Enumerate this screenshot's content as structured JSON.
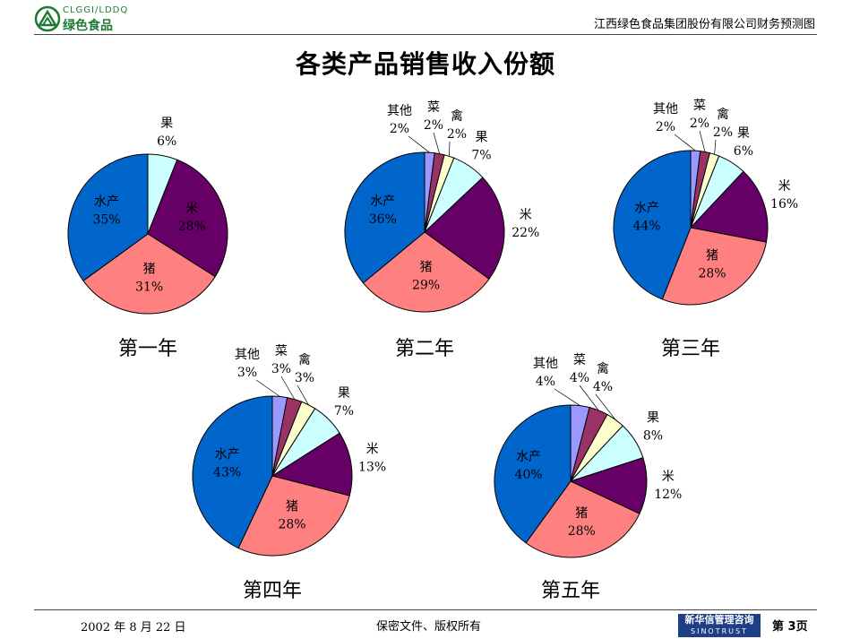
{
  "header": {
    "logo_top": "CLGGI/LDDQ",
    "logo_bottom": "绿色食品",
    "company": "江西绿色食品集团股份有限公司财务预测图"
  },
  "title": "各类产品销售收入份额",
  "colors": {
    "其他": "#9999ff",
    "菜": "#993366",
    "禽": "#ffffcc",
    "果": "#ccffff",
    "米": "#660066",
    "猪": "#ff8080",
    "水产": "#0066cc"
  },
  "chart_data": [
    {
      "type": "pie",
      "caption": "第一年",
      "slices": [
        {
          "name": "果",
          "value": 6,
          "label": "6%"
        },
        {
          "name": "米",
          "value": 28,
          "label": "28%"
        },
        {
          "name": "猪",
          "value": 31,
          "label": "31%"
        },
        {
          "name": "水产",
          "value": 35,
          "label": "35%"
        }
      ]
    },
    {
      "type": "pie",
      "caption": "第二年",
      "slices": [
        {
          "name": "其他",
          "value": 2,
          "label": "2%"
        },
        {
          "name": "菜",
          "value": 2,
          "label": "2%"
        },
        {
          "name": "禽",
          "value": 2,
          "label": "2%"
        },
        {
          "name": "果",
          "value": 7,
          "label": "7%"
        },
        {
          "name": "米",
          "value": 22,
          "label": "22%"
        },
        {
          "name": "猪",
          "value": 29,
          "label": "29%"
        },
        {
          "name": "水产",
          "value": 36,
          "label": "36%"
        }
      ]
    },
    {
      "type": "pie",
      "caption": "第三年",
      "slices": [
        {
          "name": "其他",
          "value": 2,
          "label": "2%"
        },
        {
          "name": "菜",
          "value": 2,
          "label": "2%"
        },
        {
          "name": "禽",
          "value": 2,
          "label": "2%"
        },
        {
          "name": "果",
          "value": 6,
          "label": "6%"
        },
        {
          "name": "米",
          "value": 16,
          "label": "16%"
        },
        {
          "name": "猪",
          "value": 28,
          "label": "28%"
        },
        {
          "name": "水产",
          "value": 44,
          "label": "44%"
        }
      ]
    },
    {
      "type": "pie",
      "caption": "第四年",
      "slices": [
        {
          "name": "其他",
          "value": 3,
          "label": "3%"
        },
        {
          "name": "菜",
          "value": 3,
          "label": "3%"
        },
        {
          "name": "禽",
          "value": 3,
          "label": "3%"
        },
        {
          "name": "果",
          "value": 7,
          "label": "7%"
        },
        {
          "name": "米",
          "value": 13,
          "label": "13%"
        },
        {
          "name": "猪",
          "value": 28,
          "label": "28%"
        },
        {
          "name": "水产",
          "value": 43,
          "label": "43%"
        }
      ]
    },
    {
      "type": "pie",
      "caption": "第五年",
      "slices": [
        {
          "name": "其他",
          "value": 4,
          "label": "4%"
        },
        {
          "name": "菜",
          "value": 4,
          "label": "4%"
        },
        {
          "name": "禽",
          "value": 4,
          "label": "4%"
        },
        {
          "name": "果",
          "value": 8,
          "label": "8%"
        },
        {
          "name": "米",
          "value": 12,
          "label": "12%"
        },
        {
          "name": "猪",
          "value": 28,
          "label": "28%"
        },
        {
          "name": "水产",
          "value": 40,
          "label": "40%"
        }
      ]
    }
  ],
  "footer": {
    "date": "2002 年 8 月 22 日",
    "confidential": "保密文件、版权所有",
    "brand_cn": "新华信管理咨询",
    "brand_en": "SINOTRUST",
    "page": "第 3页"
  }
}
